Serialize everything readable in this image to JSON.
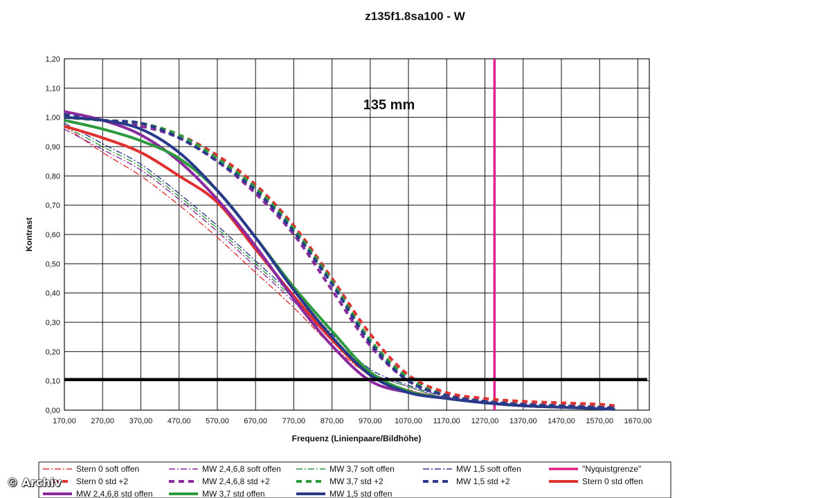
{
  "chart_data": {
    "type": "line",
    "title": "z135f1.8sa100 - W",
    "annotation": "135 mm",
    "xlabel": "Frequenz (Linienpaare/Bildhöhe)",
    "ylabel": "Kontrast",
    "xlim": [
      170,
      1700
    ],
    "ylim": [
      0,
      1.2
    ],
    "x_ticks": [
      "170,00",
      "270,00",
      "370,00",
      "470,00",
      "570,00",
      "670,00",
      "770,00",
      "870,00",
      "970,00",
      "1070,00",
      "1170,00",
      "1270,00",
      "1370,00",
      "1470,00",
      "1570,00",
      "1670,00"
    ],
    "y_ticks": [
      "0,00",
      "0,10",
      "0,20",
      "0,30",
      "0,40",
      "0,50",
      "0,60",
      "0,70",
      "0,80",
      "0,90",
      "1,00",
      "1,10",
      "1,20"
    ],
    "grid": true,
    "legend_position": "bottom",
    "x": [
      170,
      270,
      370,
      470,
      570,
      670,
      770,
      870,
      970,
      1070,
      1170,
      1270,
      1370,
      1470,
      1570,
      1610
    ],
    "series": [
      {
        "name": "Stern 0 soft offen",
        "color": "#e03030",
        "style": "dashdot-thin",
        "values": [
          0.97,
          0.88,
          0.8,
          0.7,
          0.59,
          0.47,
          0.35,
          0.22,
          0.12,
          0.07,
          0.04,
          0.025,
          0.015,
          0.01,
          0.005,
          0.003
        ]
      },
      {
        "name": "MW 2,4,6,8 soft offen",
        "color": "#8a2a9e",
        "style": "dashdot-thin",
        "values": [
          0.96,
          0.89,
          0.82,
          0.72,
          0.61,
          0.49,
          0.37,
          0.24,
          0.13,
          0.08,
          0.04,
          0.025,
          0.015,
          0.01,
          0.005,
          0.003
        ]
      },
      {
        "name": "MW 3,7 soft offen",
        "color": "#2e9a3e",
        "style": "dashdot-thin",
        "values": [
          0.97,
          0.9,
          0.83,
          0.73,
          0.62,
          0.5,
          0.38,
          0.25,
          0.13,
          0.08,
          0.04,
          0.025,
          0.015,
          0.01,
          0.005,
          0.003
        ]
      },
      {
        "name": "MW 1,5 soft offen",
        "color": "#2a3a8a",
        "style": "dashdot-thin",
        "values": [
          0.98,
          0.91,
          0.84,
          0.74,
          0.63,
          0.51,
          0.39,
          0.26,
          0.14,
          0.085,
          0.045,
          0.025,
          0.015,
          0.01,
          0.005,
          0.003
        ]
      },
      {
        "name": "\"Nyquistgrenze\"",
        "color": "#e0208a",
        "style": "vline",
        "x_value": 1295
      },
      {
        "name": "Stern 0 std +2",
        "color": "#e03030",
        "style": "dash-thick",
        "values": [
          1.0,
          0.99,
          0.98,
          0.94,
          0.87,
          0.77,
          0.63,
          0.45,
          0.26,
          0.12,
          0.06,
          0.04,
          0.03,
          0.025,
          0.02,
          0.015
        ]
      },
      {
        "name": "MW 2,4,6,8 std +2",
        "color": "#8a2a9e",
        "style": "dash-thick",
        "values": [
          1.0,
          0.99,
          0.97,
          0.93,
          0.85,
          0.74,
          0.6,
          0.41,
          0.22,
          0.1,
          0.05,
          0.03,
          0.02,
          0.015,
          0.01,
          0.008
        ]
      },
      {
        "name": "MW 3,7 std +2",
        "color": "#2e9a3e",
        "style": "dash-thick",
        "values": [
          1.0,
          0.99,
          0.98,
          0.94,
          0.86,
          0.76,
          0.62,
          0.44,
          0.24,
          0.11,
          0.05,
          0.03,
          0.02,
          0.015,
          0.01,
          0.008
        ]
      },
      {
        "name": "MW 1,5 std +2",
        "color": "#2a3a8a",
        "style": "dash-thick",
        "values": [
          1.01,
          0.99,
          0.98,
          0.93,
          0.85,
          0.75,
          0.61,
          0.43,
          0.23,
          0.1,
          0.05,
          0.03,
          0.02,
          0.015,
          0.01,
          0.008
        ]
      },
      {
        "name": "Stern 0 std offen",
        "color": "#e03030",
        "style": "solid-thick",
        "values": [
          0.97,
          0.93,
          0.88,
          0.8,
          0.71,
          0.55,
          0.39,
          0.24,
          0.12,
          0.065,
          0.04,
          0.025,
          0.015,
          0.01,
          0.005,
          0.003
        ]
      },
      {
        "name": "MW 2,4,6,8 std offen",
        "color": "#8a2a9e",
        "style": "solid-thick",
        "values": [
          1.02,
          0.99,
          0.94,
          0.85,
          0.72,
          0.56,
          0.38,
          0.22,
          0.1,
          0.06,
          0.04,
          0.025,
          0.015,
          0.01,
          0.005,
          0.003
        ]
      },
      {
        "name": "MW 3,7 std offen",
        "color": "#2e9a3e",
        "style": "solid-thick",
        "values": [
          0.99,
          0.96,
          0.92,
          0.86,
          0.75,
          0.59,
          0.42,
          0.27,
          0.13,
          0.065,
          0.04,
          0.025,
          0.015,
          0.01,
          0.005,
          0.003
        ]
      },
      {
        "name": "MW 1,5 std offen",
        "color": "#2a3a8a",
        "style": "solid-thick",
        "values": [
          1.0,
          0.99,
          0.96,
          0.88,
          0.75,
          0.59,
          0.41,
          0.25,
          0.12,
          0.06,
          0.04,
          0.025,
          0.015,
          0.01,
          0.005,
          0.003
        ]
      },
      {
        "name": "",
        "color": "#000000",
        "style": "hline-thick",
        "y_value": 0.105
      }
    ]
  },
  "watermark": "© Archiv"
}
